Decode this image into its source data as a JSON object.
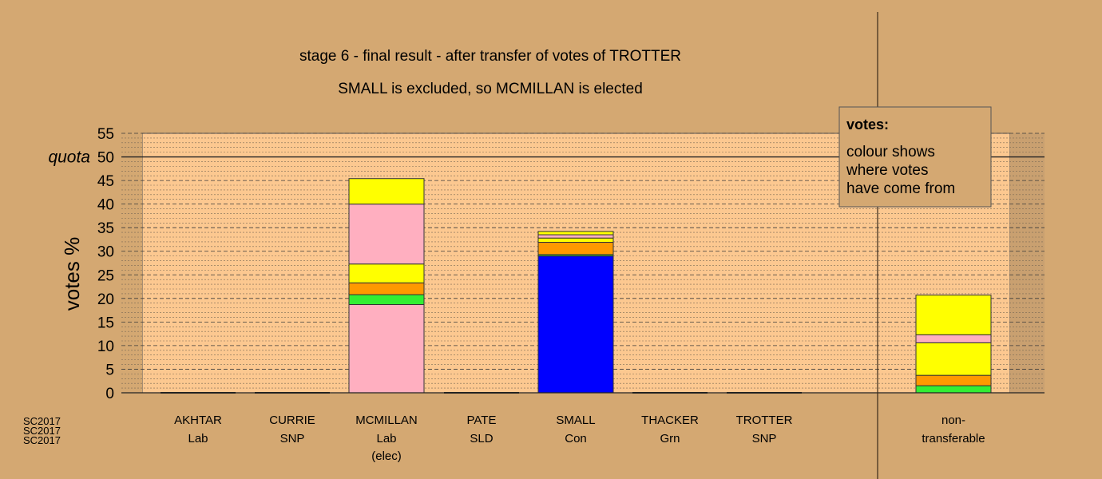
{
  "chart_data": {
    "type": "bar",
    "stacked": true,
    "title": "stage 6 - final result - after transfer of votes of TROTTER",
    "subtitle": "SMALL is excluded, so MCMILLAN is elected",
    "ylabel": "votes %",
    "ylim": [
      0,
      55
    ],
    "yticks": [
      0,
      5,
      10,
      15,
      20,
      25,
      30,
      35,
      40,
      45,
      50,
      55
    ],
    "quota": {
      "value": 50,
      "label": "quota"
    },
    "grid": true,
    "legend": {
      "position": "top-right",
      "title": "votes:",
      "lines": [
        "colour shows",
        "where votes",
        "have come from"
      ]
    },
    "colors": {
      "background": "#d4a872",
      "plot": "#fcc890",
      "Lab": "#ffafc0",
      "SNP": "#ffff00",
      "SLD": "#ff9900",
      "Con": "#0000ff",
      "Grn": "#33ee33"
    },
    "categories": [
      {
        "name": "AKHTAR",
        "party": "Lab",
        "note": "",
        "segments": []
      },
      {
        "name": "CURRIE",
        "party": "SNP",
        "note": "",
        "segments": []
      },
      {
        "name": "MCMILLAN",
        "party": "Lab",
        "note": "(elec)",
        "segments": [
          {
            "from": "Lab",
            "value": 18.7
          },
          {
            "from": "Grn",
            "value": 2.1
          },
          {
            "from": "SLD",
            "value": 2.5
          },
          {
            "from": "SNP",
            "value": 4.0
          },
          {
            "from": "Lab",
            "value": 12.7
          },
          {
            "from": "SNP",
            "value": 5.4
          }
        ]
      },
      {
        "name": "PATE",
        "party": "SLD",
        "note": "",
        "segments": []
      },
      {
        "name": "SMALL",
        "party": "Con",
        "note": "",
        "segments": [
          {
            "from": "Con",
            "value": 29.0
          },
          {
            "from": "Grn",
            "value": 0.3
          },
          {
            "from": "SLD",
            "value": 2.6
          },
          {
            "from": "SNP",
            "value": 0.9
          },
          {
            "from": "Lab",
            "value": 0.7
          },
          {
            "from": "SNP",
            "value": 0.7
          }
        ]
      },
      {
        "name": "THACKER",
        "party": "Grn",
        "note": "",
        "segments": []
      },
      {
        "name": "TROTTER",
        "party": "SNP",
        "note": "",
        "segments": []
      }
    ],
    "nontransferable": {
      "label_1": "non-",
      "label_2": "transferable",
      "segments": [
        {
          "from": "Grn",
          "value": 1.5
        },
        {
          "from": "SLD",
          "value": 2.2
        },
        {
          "from": "SNP",
          "value": 6.9
        },
        {
          "from": "Lab",
          "value": 1.7
        },
        {
          "from": "SNP",
          "value": 8.4
        }
      ]
    }
  },
  "stamp": [
    "SC2017",
    "SC2017",
    "SC2017"
  ]
}
